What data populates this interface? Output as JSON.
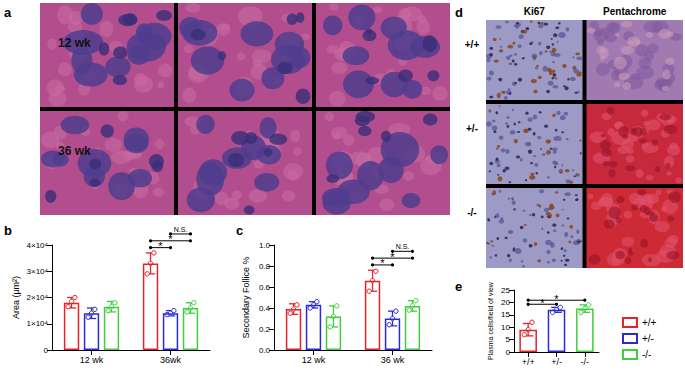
{
  "panel_labels": [
    "a",
    "b",
    "c",
    "d",
    "e"
  ],
  "panel_a": {
    "rows": [
      "12 wk",
      "36 wk"
    ]
  },
  "panel_d": {
    "columns": [
      "Ki67",
      "Pentachrome"
    ],
    "rows": [
      "+/+",
      "+/-",
      "-/-"
    ]
  },
  "chart_data": [
    {
      "type": "bar",
      "categories": [
        "12 wk",
        "36wk"
      ],
      "ylabel": "Area (μm²)",
      "ylim": [
        0,
        40000
      ],
      "yticks": [
        0,
        {
          "value": 10000,
          "label": "1×10⁴"
        },
        {
          "value": 20000,
          "label": "2×10⁴"
        },
        {
          "value": 30000,
          "label": "3×10⁴"
        },
        {
          "value": 40000,
          "label": "4×10⁴"
        }
      ],
      "series": [
        {
          "name": "+/+",
          "color": "#e4232a",
          "values": [
            18000,
            33000
          ],
          "errors": [
            2000,
            4000
          ],
          "points": [
            [
              16500,
              18500,
              20000
            ],
            [
              29000,
              33000,
              37000
            ]
          ]
        },
        {
          "name": "+/-",
          "color": "#2b2bd6",
          "values": [
            14000,
            14000
          ],
          "errors": [
            2000,
            1000
          ],
          "points": [
            [
              12500,
              14000,
              15500
            ],
            [
              13500,
              14000,
              15000
            ]
          ]
        },
        {
          "name": "-/-",
          "color": "#3ecf3e",
          "values": [
            16500,
            16000
          ],
          "errors": [
            2000,
            2000
          ],
          "points": [
            [
              15000,
              16500,
              18000
            ],
            [
              14500,
              16000,
              18000
            ]
          ]
        }
      ],
      "annotations": [
        {
          "category": "36wk",
          "from": "+/+",
          "to": "+/-",
          "label": "*"
        },
        {
          "category": "36wk",
          "from": "+/+",
          "to": "-/-",
          "label": "*"
        },
        {
          "category": "36wk",
          "from": "+/-",
          "to": "-/-",
          "label": "N.S."
        }
      ]
    },
    {
      "type": "bar",
      "categories": [
        "12 wk",
        "36 wk"
      ],
      "ylabel": "Secondary Follice %",
      "ylim": [
        0,
        1
      ],
      "yticks": [
        {
          "value": 0,
          "label": "0.0"
        },
        0.2,
        0.4,
        0.6,
        0.8,
        {
          "value": 1,
          "label": "1.0"
        }
      ],
      "series": [
        {
          "name": "+/+",
          "color": "#e4232a",
          "values": [
            0.39,
            0.66
          ],
          "errors": [
            0.05,
            0.1
          ],
          "points": [
            [
              0.35,
              0.39,
              0.43
            ],
            [
              0.56,
              0.66,
              0.75
            ]
          ]
        },
        {
          "name": "+/-",
          "color": "#2b2bd6",
          "values": [
            0.43,
            0.3
          ],
          "errors": [
            0.03,
            0.07
          ],
          "points": [
            [
              0.4,
              0.43,
              0.46
            ],
            [
              0.24,
              0.3,
              0.37
            ]
          ]
        },
        {
          "name": "-/-",
          "color": "#3ecf3e",
          "values": [
            0.32,
            0.42
          ],
          "errors": [
            0.1,
            0.05
          ],
          "points": [
            [
              0.22,
              0.32,
              0.42
            ],
            [
              0.38,
              0.42,
              0.47
            ]
          ]
        }
      ],
      "annotations": [
        {
          "category": "36 wk",
          "from": "+/+",
          "to": "+/-",
          "label": "*"
        },
        {
          "category": "36 wk",
          "from": "+/+",
          "to": "-/-",
          "label": "*"
        },
        {
          "category": "36 wk",
          "from": "+/-",
          "to": "-/-",
          "label": "N.S."
        }
      ]
    },
    {
      "type": "bar",
      "categories": [
        "+/+",
        "+/-",
        "-/-"
      ],
      "ylabel": "Plasma cells/field of view",
      "ylim": [
        0,
        25
      ],
      "yticks": [
        0,
        5,
        10,
        15,
        20,
        25
      ],
      "values": [
        9,
        17,
        17.5
      ],
      "errors": [
        2.5,
        1,
        1.5
      ],
      "points": [
        [
          7,
          9,
          12
        ],
        [
          16,
          17,
          18
        ],
        [
          16,
          17.5,
          19
        ]
      ],
      "colors": [
        "#e4232a",
        "#2b2bd6",
        "#3ecf3e"
      ],
      "legend": "lower right",
      "annotations": [
        {
          "from": "+/+",
          "to": "+/-",
          "label": "*"
        },
        {
          "from": "+/+",
          "to": "-/-",
          "label": "*"
        }
      ]
    }
  ]
}
